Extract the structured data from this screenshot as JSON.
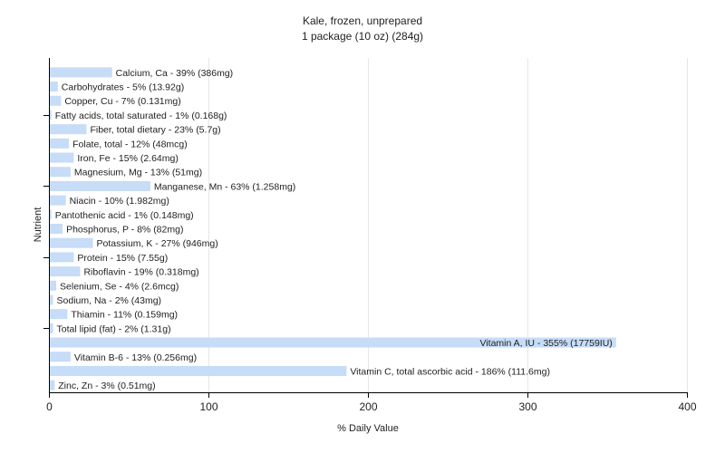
{
  "chart_data": {
    "type": "bar",
    "orientation": "horizontal",
    "title": "Kale, frozen, unprepared",
    "subtitle": "1 package (10 oz) (284g)",
    "xlabel": "% Daily Value",
    "ylabel": "Nutrient",
    "xlim": [
      0,
      400
    ],
    "xticks": [
      0,
      100,
      200,
      300,
      400
    ],
    "grid": true,
    "bar_color": "#c6dcf7",
    "categories": [
      "Calcium, Ca",
      "Carbohydrates",
      "Copper, Cu",
      "Fatty acids, total saturated",
      "Fiber, total dietary",
      "Folate, total",
      "Iron, Fe",
      "Magnesium, Mg",
      "Manganese, Mn",
      "Niacin",
      "Pantothenic acid",
      "Phosphorus, P",
      "Potassium, K",
      "Protein",
      "Riboflavin",
      "Selenium, Se",
      "Sodium, Na",
      "Thiamin",
      "Total lipid (fat)",
      "Vitamin A, IU",
      "Vitamin B-6",
      "Vitamin C, total ascorbic acid",
      "Zinc, Zn"
    ],
    "values": [
      39,
      5,
      7,
      1,
      23,
      12,
      15,
      13,
      63,
      10,
      1,
      8,
      27,
      15,
      19,
      4,
      2,
      11,
      2,
      355,
      13,
      186,
      3
    ],
    "labels": [
      "Calcium, Ca - 39% (386mg)",
      "Carbohydrates - 5% (13.92g)",
      "Copper, Cu - 7% (0.131mg)",
      "Fatty acids, total saturated - 1% (0.168g)",
      "Fiber, total dietary - 23% (5.7g)",
      "Folate, total - 12% (48mcg)",
      "Iron, Fe - 15% (2.64mg)",
      "Magnesium, Mg - 13% (51mg)",
      "Manganese, Mn - 63% (1.258mg)",
      "Niacin - 10% (1.982mg)",
      "Pantothenic acid - 1% (0.148mg)",
      "Phosphorus, P - 8% (82mg)",
      "Potassium, K - 27% (946mg)",
      "Protein - 15% (7.55g)",
      "Riboflavin - 19% (0.318mg)",
      "Selenium, Se - 4% (2.6mcg)",
      "Sodium, Na - 2% (43mg)",
      "Thiamin - 11% (0.159mg)",
      "Total lipid (fat) - 2% (1.31g)",
      "Vitamin A, IU - 355% (17759IU)",
      "Vitamin B-6 - 13% (0.256mg)",
      "Vitamin C, total ascorbic acid - 186% (111.6mg)",
      "Zinc, Zn - 3% (0.51mg)"
    ]
  }
}
